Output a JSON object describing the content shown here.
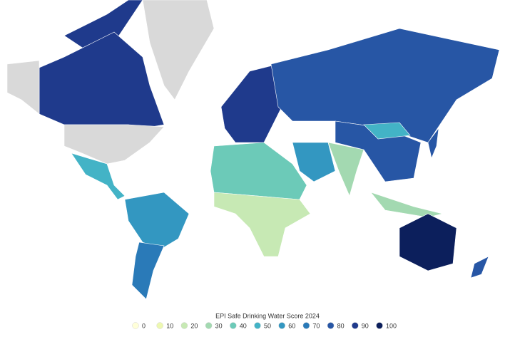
{
  "legend": {
    "title": "EPI Safe Drinking Water Score 2024",
    "items": [
      {
        "label": 0,
        "color": "#ffffd9"
      },
      {
        "label": 10,
        "color": "#edf8b1"
      },
      {
        "label": 20,
        "color": "#c7e9b4"
      },
      {
        "label": 30,
        "color": "#a3d9b1"
      },
      {
        "label": 40,
        "color": "#6ccab8"
      },
      {
        "label": 50,
        "color": "#43b3c6"
      },
      {
        "label": 60,
        "color": "#3397c1"
      },
      {
        "label": 70,
        "color": "#2a7ab8"
      },
      {
        "label": 80,
        "color": "#2756a5"
      },
      {
        "label": 90,
        "color": "#1f3a8c"
      },
      {
        "label": 100,
        "color": "#0c1f5c"
      }
    ]
  }
}
